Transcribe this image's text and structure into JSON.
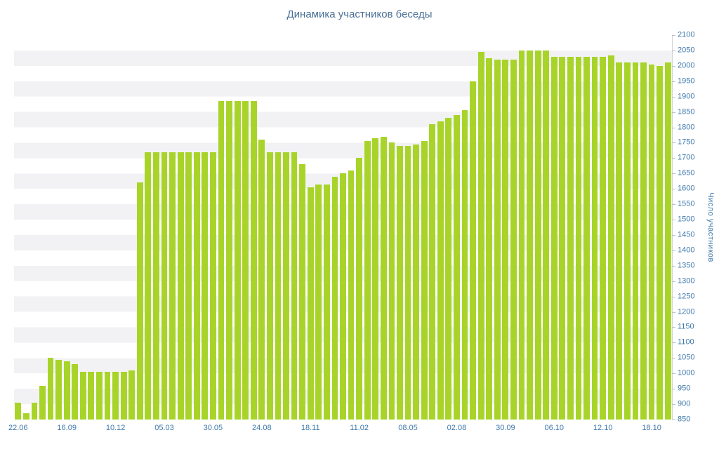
{
  "chart_data": {
    "type": "bar",
    "title": "Динамика участников беседы",
    "ylabel": "Число участников",
    "xlabel": "",
    "ylim": [
      850,
      2100
    ],
    "ytick_step": 50,
    "grid": "striped-horizontal-bands",
    "legend": "none",
    "bar_color": "#a8d42a",
    "stripe_color": "#f2f2f4",
    "text_color": "#3e78ab",
    "title_color": "#4a6f96",
    "axis_color": "#cdd2da",
    "x_tick_labels": [
      "22.06",
      "16.09",
      "10.12",
      "05.03",
      "30.05",
      "24.08",
      "18.11",
      "11.02",
      "08.05",
      "02.08",
      "30.09",
      "06.10",
      "12.10",
      "18.10"
    ],
    "x_tick_indices": [
      0,
      6,
      12,
      18,
      24,
      30,
      36,
      42,
      48,
      54,
      60,
      66,
      72,
      78
    ],
    "values": [
      905,
      870,
      905,
      960,
      1050,
      1045,
      1040,
      1030,
      1005,
      1005,
      1005,
      1005,
      1005,
      1005,
      1010,
      1620,
      1720,
      1720,
      1720,
      1720,
      1720,
      1720,
      1720,
      1720,
      1720,
      1885,
      1885,
      1885,
      1885,
      1885,
      1760,
      1720,
      1720,
      1720,
      1720,
      1680,
      1605,
      1615,
      1615,
      1640,
      1650,
      1660,
      1700,
      1755,
      1765,
      1770,
      1750,
      1740,
      1740,
      1745,
      1755,
      1810,
      1820,
      1830,
      1840,
      1855,
      1950,
      2045,
      2025,
      2020,
      2020,
      2020,
      2050,
      2050,
      2050,
      2050,
      2030,
      2030,
      2030,
      2030,
      2030,
      2030,
      2030,
      2035,
      2010,
      2010,
      2010,
      2010,
      2005,
      2000,
      2010
    ]
  }
}
